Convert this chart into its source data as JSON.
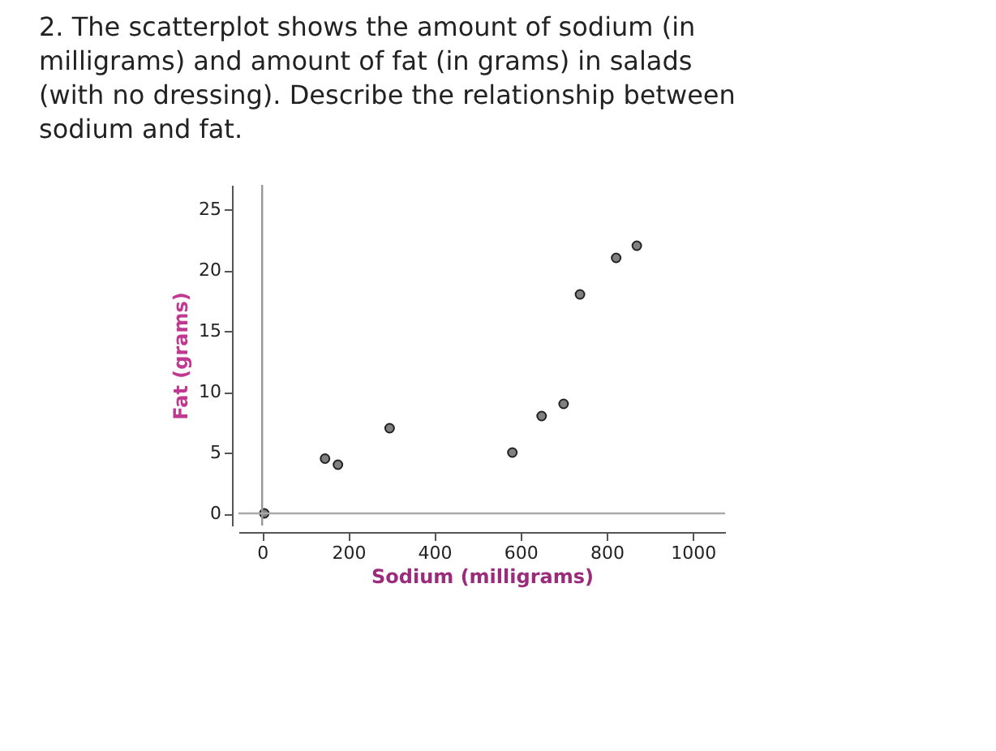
{
  "chart_data": {
    "type": "scatter",
    "title": "2. The scatterplot shows the amount of sodium (in milligrams) and amount of fat (in grams) in salads (with no dressing). Describe the relationship between sodium and fat.",
    "xlabel": "Sodium (milligrams)",
    "ylabel": "Fat (grams)",
    "x": [
      5,
      146,
      176,
      296,
      581,
      649,
      700,
      738,
      822,
      870
    ],
    "series": [
      {
        "color": "#808080",
        "values": [
          0,
          4.5,
          4,
          7,
          5,
          8,
          9,
          18,
          21,
          22
        ]
      }
    ],
    "xlim": [
      -55,
      1075
    ],
    "ylim": [
      -1,
      27
    ],
    "xticks": [
      0,
      200,
      400,
      600,
      800,
      1000
    ],
    "yticks": [
      0,
      5,
      10,
      15,
      20,
      25
    ],
    "grid": false,
    "marker": "circle",
    "ref_lines": [
      {
        "axis": "x",
        "value": 0,
        "color": "#999999"
      },
      {
        "axis": "y",
        "value": 0,
        "color": "#aaaaaa"
      }
    ]
  }
}
